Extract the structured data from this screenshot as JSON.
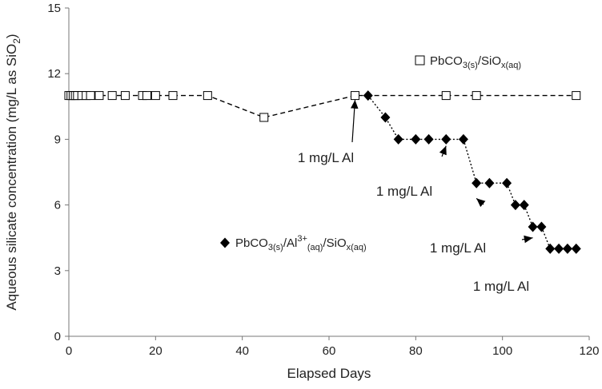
{
  "chart_data": {
    "type": "scatter",
    "xlabel": "Elapsed Days",
    "ylabel": "Aqueous silicate concentration (mg/L as SiO2)",
    "xlim": [
      0,
      120
    ],
    "ylim": [
      0,
      15
    ],
    "xticks": [
      0,
      20,
      40,
      60,
      80,
      100,
      120
    ],
    "yticks": [
      0,
      3,
      6,
      9,
      12,
      15
    ],
    "grid": false,
    "series": [
      {
        "name": "PbCO3(s)/SiOx(aq)",
        "marker": "open-square",
        "line": "dashed",
        "color": "#000000",
        "x": [
          0,
          0.5,
          1,
          1.5,
          2,
          3,
          4,
          5,
          7,
          10,
          13,
          17,
          18,
          20,
          24,
          32,
          45,
          66,
          87,
          94,
          117
        ],
        "y": [
          11,
          11,
          11,
          11,
          11,
          11,
          11,
          11,
          11,
          11,
          11,
          11,
          11,
          11,
          11,
          11,
          10,
          11,
          11,
          11,
          11
        ]
      },
      {
        "name": "PbCO3(s)/Al3+(aq)/SiOx(aq)",
        "marker": "filled-diamond",
        "line": "dotted",
        "color": "#000000",
        "x": [
          69,
          73,
          76,
          80,
          83,
          87,
          91,
          94,
          97,
          101,
          103,
          105,
          107,
          109,
          111,
          113,
          115,
          117
        ],
        "y": [
          11,
          10,
          9,
          9,
          9,
          9,
          9,
          7,
          7,
          7,
          6,
          6,
          5,
          5,
          4,
          4,
          4,
          4
        ]
      }
    ],
    "legend": [
      {
        "base": "PbCO",
        "sub1": "3(s)",
        "mid": "/SiO",
        "sub2": "x(aq)"
      },
      {
        "base": "PbCO",
        "sub1": "3(s)",
        "mid": "/Al",
        "sup": "3+",
        "sub3": "(aq)",
        "mid2": "/SiO",
        "sub2": "x(aq)"
      }
    ],
    "annotations": [
      {
        "text": "1 mg/L Al",
        "arrow_to": [
          66,
          10.8
        ]
      },
      {
        "text": "1 mg/L Al",
        "arrow_to": [
          87,
          8.7
        ]
      },
      {
        "text": "1 mg/L Al",
        "arrow_to": [
          94,
          6.3
        ]
      },
      {
        "text": "1 mg/L Al",
        "arrow_to": [
          107,
          4.5
        ]
      }
    ]
  }
}
